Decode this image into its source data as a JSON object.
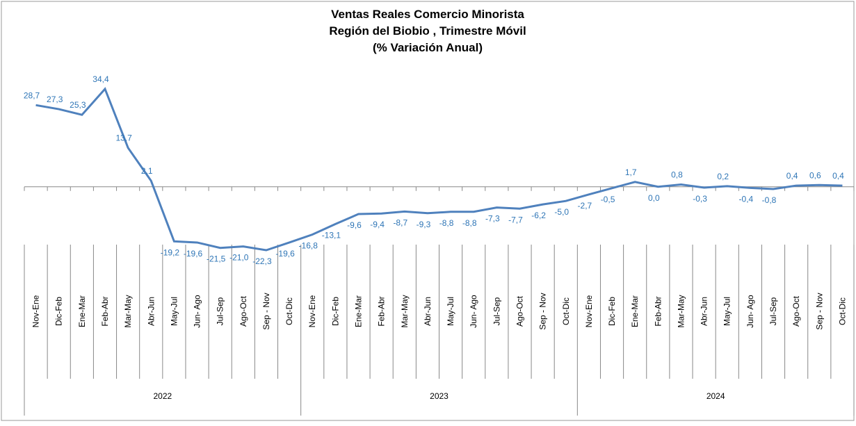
{
  "chart_data": {
    "type": "line",
    "title": [
      "Ventas Reales Comercio Minorista",
      "Región del Biobio , Trimestre Móvil",
      "(% Variación Anual)"
    ],
    "categories": [
      "Nov-Ene",
      "Dic-Feb",
      "Ene-Mar",
      "Feb-Abr",
      "Mar-May",
      "Abr-Jun",
      "May-Jul",
      "Jun- Ago",
      "Jul-Sep",
      "Ago-Oct",
      "Sep - Nov",
      "Oct-Dic",
      "Nov-Ene",
      "Dic-Feb",
      "Ene-Mar",
      "Feb-Abr",
      "Mar-May",
      "Abr-Jun",
      "May-Jul",
      "Jun- Ago",
      "Jul-Sep",
      "Ago-Oct",
      "Sep - Nov",
      "Oct-Dic",
      "Nov-Ene",
      "Dic-Feb",
      "Ene-Mar",
      "Feb-Abr",
      "Mar-May",
      "Abr-Jun",
      "May-Jul",
      "Jun- Ago",
      "Jul-Sep",
      "Ago-Oct",
      "Sep - Nov",
      "Oct-Dic"
    ],
    "groups": [
      "2022",
      "2023",
      "2024"
    ],
    "series": [
      {
        "color": "#4f81bd",
        "values": [
          28.7,
          27.3,
          25.3,
          34.4,
          13.7,
          2.1,
          -19.2,
          -19.6,
          -21.5,
          -21.0,
          -22.3,
          -19.6,
          -16.8,
          -13.1,
          -9.6,
          -9.4,
          -8.7,
          -9.3,
          -8.8,
          -8.8,
          -7.3,
          -7.7,
          -6.2,
          -5.0,
          -2.7,
          -0.5,
          1.7,
          0.0,
          0.8,
          -0.3,
          0.2,
          -0.4,
          -0.8,
          0.4,
          0.6,
          0.4
        ],
        "value_labels": [
          "28,7",
          "27,3",
          "25,3",
          "34,4",
          "13,7",
          "2,1",
          "-19,2",
          "-19,6",
          "-21,5",
          "-21,0",
          "-22,3",
          "-19,6",
          "-16,8",
          "-13,1",
          "-9,6",
          "-9,4",
          "-8,7",
          "-9,3",
          "-8,8",
          "-8,8",
          "-7,3",
          "-7,7",
          "-6,2",
          "-5,0",
          "-2,7",
          "-0,5",
          "1,7",
          "0,0",
          "0,8",
          "-0,3",
          "0,2",
          "-0,4",
          "-0,8",
          "0,4",
          "0,6",
          "0,4"
        ]
      }
    ]
  }
}
